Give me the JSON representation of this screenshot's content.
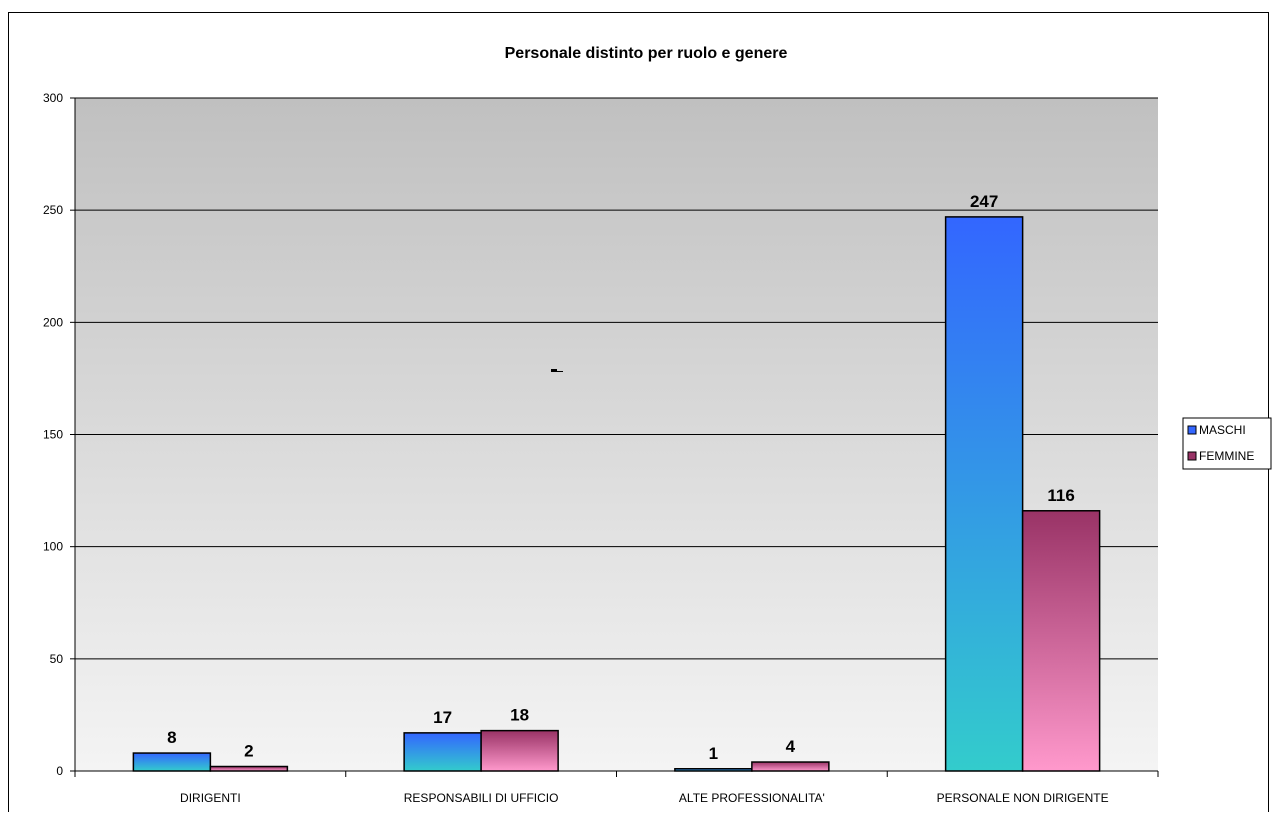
{
  "chart_data": {
    "type": "bar",
    "title": "Personale distinto per ruolo e genere",
    "categories": [
      "DIRIGENTI",
      "RESPONSABILI DI UFFICIO",
      "ALTE PROFESSIONALITA'",
      "PERSONALE NON DIRIGENTE"
    ],
    "series": [
      {
        "name": "MASCHI",
        "values": [
          8,
          17,
          1,
          247
        ]
      },
      {
        "name": "FEMMINE",
        "values": [
          2,
          18,
          4,
          116
        ]
      }
    ],
    "ylim": [
      0,
      300
    ],
    "yticks": [
      0,
      50,
      100,
      150,
      200,
      250,
      300
    ],
    "grid": true,
    "legend": "right",
    "colors": {
      "maschi_top": "#3366ff",
      "maschi_bottom": "#33cccc",
      "femmine_top": "#993366",
      "femmine_bottom": "#ff99cc",
      "plot_top": "#c0c0c0",
      "plot_bottom": "#f4f4f4"
    }
  }
}
